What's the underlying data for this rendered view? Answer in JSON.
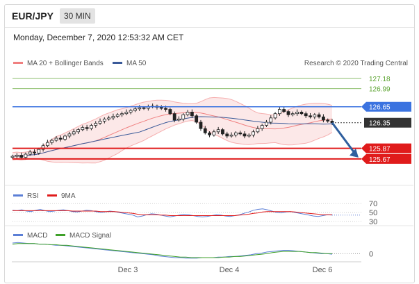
{
  "header": {
    "symbol": "EUR/JPY",
    "interval": "30 MIN"
  },
  "datetime": "Monday, December 7, 2020 12:53:32 AM CET",
  "credit": "Research © 2020 Trading Central",
  "colors": {
    "bollinger": "#f08080",
    "ma50": "#3a5a99",
    "resistance_green": "#5aa22e",
    "resistance_blue": "#3b73e0",
    "support_red": "#e01b1b",
    "price_tag": "#333333",
    "rsi": "#5b7fd6",
    "rsi_ma": "#e01b1b",
    "macd": "#5b7fd6",
    "macd_signal": "#3fa12a"
  },
  "chart_data": [
    {
      "type": "candlestick",
      "panel": "price",
      "legend": [
        "MA 20 + Bollinger Bands",
        "MA 50"
      ],
      "x_ticks": [
        "Dec 3",
        "Dec 4",
        "Dec 6"
      ],
      "ylim": [
        125.2,
        127.35
      ],
      "levels": [
        {
          "value": 127.18,
          "label": "127.18",
          "color": "#5aa22e",
          "kind": "resistance"
        },
        {
          "value": 126.99,
          "label": "126.99",
          "color": "#5aa22e",
          "kind": "resistance"
        },
        {
          "value": 126.65,
          "label": "126.65",
          "color": "#3b73e0",
          "kind": "pivot"
        },
        {
          "value": 126.35,
          "label": "126.35",
          "color": "#333333",
          "kind": "last"
        },
        {
          "value": 125.87,
          "label": "125.87",
          "color": "#e01b1b",
          "kind": "support"
        },
        {
          "value": 125.67,
          "label": "125.67",
          "color": "#e01b1b",
          "kind": "support"
        }
      ],
      "close": [
        125.72,
        125.74,
        125.7,
        125.76,
        125.8,
        125.78,
        125.85,
        125.92,
        125.98,
        126.02,
        126.06,
        126.04,
        126.1,
        126.14,
        126.18,
        126.22,
        126.26,
        126.24,
        126.3,
        126.34,
        126.38,
        126.42,
        126.44,
        126.47,
        126.5,
        126.52,
        126.55,
        126.58,
        126.61,
        126.63,
        126.62,
        126.65,
        126.66,
        126.64,
        126.62,
        126.6,
        126.52,
        126.4,
        126.42,
        126.5,
        126.55,
        126.48,
        126.36,
        126.24,
        126.16,
        126.12,
        126.18,
        126.22,
        126.14,
        126.1,
        126.12,
        126.16,
        126.14,
        126.1,
        126.12,
        126.18,
        126.24,
        126.3,
        126.36,
        126.44,
        126.52,
        126.6,
        126.56,
        126.5,
        126.52,
        126.55,
        126.52,
        126.48,
        126.46,
        126.5,
        126.46,
        126.4,
        126.38,
        126.35
      ]
    },
    {
      "type": "line",
      "panel": "rsi",
      "legend": [
        "RSI",
        "9MA"
      ],
      "y_ticks": [
        70,
        50,
        30
      ],
      "ylim": [
        25,
        78
      ],
      "series": [
        {
          "name": "RSI",
          "values": [
            55,
            54,
            56,
            53,
            52,
            55,
            57,
            54,
            52,
            53,
            55,
            56,
            54,
            52,
            51,
            53,
            55,
            54,
            52,
            50,
            51,
            53,
            52,
            50,
            48,
            46,
            44,
            40,
            42,
            45,
            47,
            46,
            44,
            42,
            40,
            42,
            44,
            46,
            45,
            43,
            41,
            40,
            41,
            43,
            45,
            44,
            42,
            41,
            43,
            45,
            48,
            51,
            55,
            57,
            58,
            56,
            53,
            50,
            49,
            51,
            52,
            50,
            48,
            46,
            44,
            42,
            41,
            43,
            45,
            44
          ]
        },
        {
          "name": "9MA",
          "values": [
            54,
            54,
            54,
            54,
            54,
            54,
            54,
            54,
            54,
            54,
            54,
            54,
            54,
            53,
            53,
            53,
            53,
            53,
            53,
            52,
            52,
            52,
            52,
            51,
            50,
            49,
            48,
            46,
            45,
            45,
            45,
            45,
            44,
            44,
            43,
            43,
            43,
            43,
            43,
            43,
            43,
            43,
            43,
            43,
            43,
            43,
            43,
            43,
            43,
            44,
            45,
            46,
            48,
            49,
            51,
            52,
            52,
            52,
            52,
            52,
            52,
            51,
            50,
            49,
            48,
            47,
            46,
            45,
            45,
            45
          ]
        }
      ]
    },
    {
      "type": "line",
      "panel": "macd",
      "legend": [
        "MACD",
        "MACD Signal"
      ],
      "y_ticks": [
        0
      ],
      "ylim": [
        -0.12,
        0.24
      ],
      "series": [
        {
          "name": "MACD",
          "values": [
            0.19,
            0.2,
            0.19,
            0.18,
            0.18,
            0.17,
            0.17,
            0.16,
            0.15,
            0.15,
            0.14,
            0.13,
            0.12,
            0.11,
            0.1,
            0.09,
            0.08,
            0.07,
            0.06,
            0.05,
            0.04,
            0.03,
            0.02,
            0.01,
            0.0,
            -0.01,
            -0.02,
            -0.04,
            -0.05,
            -0.06,
            -0.07,
            -0.07,
            -0.08,
            -0.08,
            -0.08,
            -0.07,
            -0.07,
            -0.07,
            -0.06,
            -0.06,
            -0.05,
            -0.05,
            -0.04,
            -0.03,
            -0.02,
            0.0,
            0.01,
            0.03,
            0.04,
            0.05,
            0.06,
            0.06,
            0.05,
            0.04,
            0.03,
            0.02,
            0.01,
            0.0,
            0.0,
            -0.01
          ]
        },
        {
          "name": "MACD Signal",
          "values": [
            0.17,
            0.18,
            0.18,
            0.18,
            0.18,
            0.17,
            0.17,
            0.16,
            0.16,
            0.15,
            0.15,
            0.14,
            0.13,
            0.12,
            0.11,
            0.1,
            0.09,
            0.08,
            0.07,
            0.06,
            0.05,
            0.04,
            0.03,
            0.02,
            0.01,
            0.0,
            -0.01,
            -0.02,
            -0.03,
            -0.04,
            -0.05,
            -0.06,
            -0.06,
            -0.07,
            -0.07,
            -0.07,
            -0.07,
            -0.07,
            -0.07,
            -0.06,
            -0.06,
            -0.05,
            -0.05,
            -0.04,
            -0.03,
            -0.02,
            -0.01,
            0.0,
            0.02,
            0.03,
            0.04,
            0.04,
            0.04,
            0.04,
            0.03,
            0.02,
            0.02,
            0.01,
            0.0,
            0.0
          ]
        }
      ]
    }
  ]
}
